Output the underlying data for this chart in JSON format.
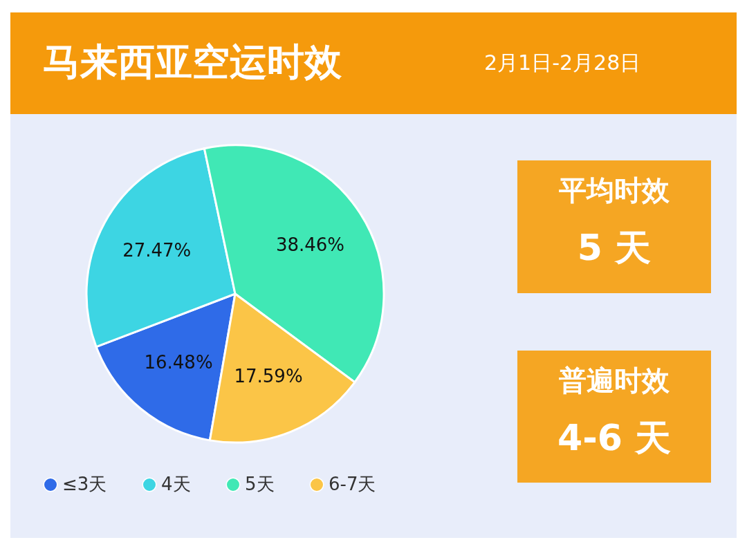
{
  "chart_data": {
    "type": "pie",
    "title": "马来西亚空运时效",
    "subtitle": "2月1日-2月28日",
    "categories": [
      "≤3天",
      "4天",
      "5天",
      "6-7天"
    ],
    "values": [
      16.48,
      27.47,
      38.46,
      17.59
    ],
    "colors": [
      "#2f6be8",
      "#3dd5e3",
      "#40e8b5",
      "#fbc547"
    ],
    "value_labels": [
      "16.48%",
      "27.47%",
      "38.46%",
      "17.59%"
    ],
    "legend": "bottom left",
    "annotations": [
      "平均时效",
      "5 天",
      "普遍时效",
      "4-6 天"
    ]
  }
}
